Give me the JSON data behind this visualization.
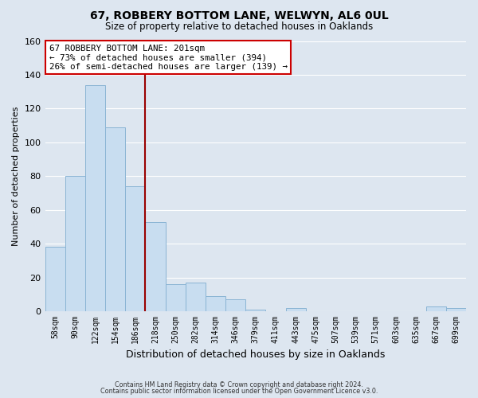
{
  "title": "67, ROBBERY BOTTOM LANE, WELWYN, AL6 0UL",
  "subtitle": "Size of property relative to detached houses in Oaklands",
  "xlabel": "Distribution of detached houses by size in Oaklands",
  "ylabel": "Number of detached properties",
  "bar_labels": [
    "58sqm",
    "90sqm",
    "122sqm",
    "154sqm",
    "186sqm",
    "218sqm",
    "250sqm",
    "282sqm",
    "314sqm",
    "346sqm",
    "379sqm",
    "411sqm",
    "443sqm",
    "475sqm",
    "507sqm",
    "539sqm",
    "571sqm",
    "603sqm",
    "635sqm",
    "667sqm",
    "699sqm"
  ],
  "bar_values": [
    38,
    80,
    134,
    109,
    74,
    53,
    16,
    17,
    9,
    7,
    1,
    0,
    2,
    0,
    0,
    0,
    0,
    0,
    0,
    3,
    2
  ],
  "bar_color": "#c8ddf0",
  "bar_edge_color": "#8ab4d4",
  "background_color": "#dde6f0",
  "grid_color": "#ffffff",
  "property_line_x": 4.5,
  "property_line_color": "#990000",
  "annotation_text_line1": "67 ROBBERY BOTTOM LANE: 201sqm",
  "annotation_text_line2": "← 73% of detached houses are smaller (394)",
  "annotation_text_line3": "26% of semi-detached houses are larger (139) →",
  "annotation_box_facecolor": "#ffffff",
  "annotation_box_edgecolor": "#cc0000",
  "ylim": [
    0,
    160
  ],
  "yticks": [
    0,
    20,
    40,
    60,
    80,
    100,
    120,
    140,
    160
  ],
  "footer_line1": "Contains HM Land Registry data © Crown copyright and database right 2024.",
  "footer_line2": "Contains public sector information licensed under the Open Government Licence v3.0."
}
